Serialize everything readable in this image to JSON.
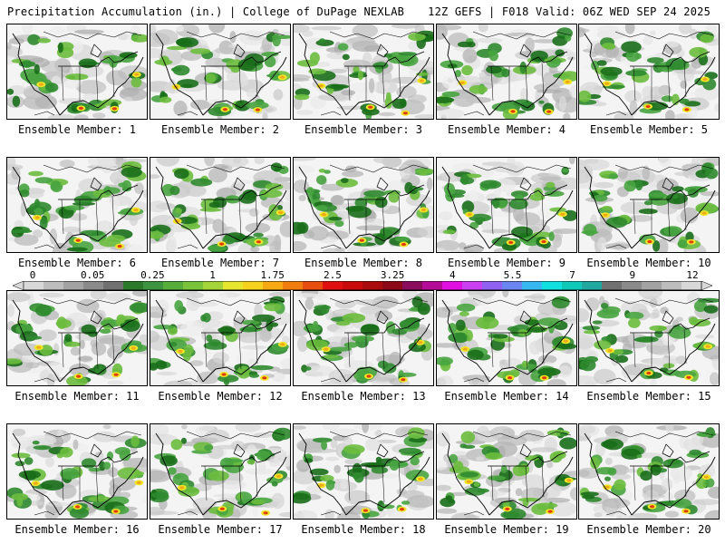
{
  "header": {
    "title": "Precipitation Accumulation (in.) | College of DuPage NEXLAB",
    "run_info": "12Z GEFS | F018 Valid: 06Z WED SEP 24 2025"
  },
  "members": [
    {
      "label": "Ensemble Member: 1"
    },
    {
      "label": "Ensemble Member: 2"
    },
    {
      "label": "Ensemble Member: 3"
    },
    {
      "label": "Ensemble Member: 4"
    },
    {
      "label": "Ensemble Member: 5"
    },
    {
      "label": "Ensemble Member: 6"
    },
    {
      "label": "Ensemble Member: 7"
    },
    {
      "label": "Ensemble Member: 8"
    },
    {
      "label": "Ensemble Member: 9"
    },
    {
      "label": "Ensemble Member: 10"
    },
    {
      "label": "Ensemble Member: 11"
    },
    {
      "label": "Ensemble Member: 12"
    },
    {
      "label": "Ensemble Member: 13"
    },
    {
      "label": "Ensemble Member: 14"
    },
    {
      "label": "Ensemble Member: 15"
    },
    {
      "label": "Ensemble Member: 16"
    },
    {
      "label": "Ensemble Member: 17"
    },
    {
      "label": "Ensemble Member: 18"
    },
    {
      "label": "Ensemble Member: 19"
    },
    {
      "label": "Ensemble Member: 20"
    }
  ],
  "colorbar": {
    "tick_labels": [
      "0",
      "0.05",
      "0.25",
      "1",
      "1.75",
      "2.5",
      "3.25",
      "4",
      "5.5",
      "7",
      "9",
      "12"
    ],
    "colors": [
      "#d8d8d8",
      "#bdbdbd",
      "#a3a3a3",
      "#8a8a8a",
      "#707070",
      "#2a7a2a",
      "#3e943e",
      "#56ad3a",
      "#79c23c",
      "#a5d43a",
      "#e7e62e",
      "#f6d11e",
      "#f6a910",
      "#f07d10",
      "#e84d10",
      "#e01010",
      "#c80c0c",
      "#a80c0c",
      "#8c0a18",
      "#8a0c5c",
      "#b40c96",
      "#e010e0",
      "#c840f0",
      "#9060f0",
      "#6a84f0",
      "#38b8f0",
      "#10e0e0",
      "#10c8b8",
      "#20a8a0",
      "#707070",
      "#8a8a8a",
      "#a3a3a3",
      "#bdbdbd",
      "#d8d8d8"
    ],
    "precip_color_scale": [
      "#1a6e1a",
      "#2f8a2f",
      "#48a440",
      "#6cbc3e",
      "#a5d43a",
      "#f0e628",
      "#f0a818",
      "#e03c10"
    ]
  }
}
